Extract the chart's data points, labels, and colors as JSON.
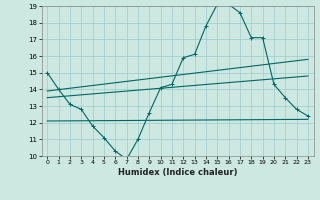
{
  "xlabel": "Humidex (Indice chaleur)",
  "xlim": [
    -0.5,
    23.5
  ],
  "ylim": [
    10,
    19
  ],
  "yticks": [
    10,
    11,
    12,
    13,
    14,
    15,
    16,
    17,
    18,
    19
  ],
  "xticks": [
    0,
    1,
    2,
    3,
    4,
    5,
    6,
    7,
    8,
    9,
    10,
    11,
    12,
    13,
    14,
    15,
    16,
    17,
    18,
    19,
    20,
    21,
    22,
    23
  ],
  "bg_color": "#cce8e0",
  "grid_color": "#99cccc",
  "line_color": "#006666",
  "series": [
    {
      "x": [
        0,
        1,
        2,
        3,
        4,
        5,
        6,
        7,
        8,
        9,
        10,
        11,
        12,
        13,
        14,
        15,
        16,
        17,
        18,
        19,
        20,
        21,
        22,
        23
      ],
      "y": [
        15.0,
        14.0,
        13.1,
        12.8,
        11.8,
        11.1,
        10.3,
        9.8,
        11.0,
        12.6,
        14.1,
        14.3,
        15.9,
        16.1,
        17.8,
        19.1,
        19.1,
        18.6,
        17.1,
        17.1,
        14.3,
        13.5,
        12.8,
        12.4
      ],
      "marker": "+"
    },
    {
      "x": [
        0,
        23
      ],
      "y": [
        13.9,
        15.8
      ],
      "marker": null
    },
    {
      "x": [
        0,
        23
      ],
      "y": [
        13.5,
        14.8
      ],
      "marker": null
    },
    {
      "x": [
        0,
        23
      ],
      "y": [
        12.1,
        12.2
      ],
      "marker": null
    }
  ]
}
